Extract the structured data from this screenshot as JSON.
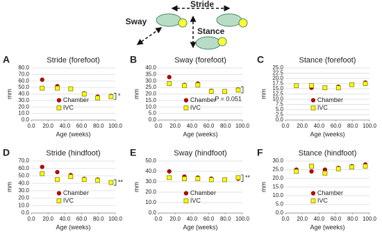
{
  "diagram": {
    "stride_label": "Stride",
    "sway_label": "Sway",
    "stance_label": "Stance"
  },
  "chart_data": [
    {
      "type": "scatter",
      "panel": "A",
      "title": "Stride (forefoot)",
      "x_label": "Age (weeks)",
      "y_label": "mm",
      "x": [
        13,
        31,
        47,
        63,
        79,
        95
      ],
      "series": [
        {
          "name": "Chamber",
          "color": "#c00000",
          "values": [
            62,
            52,
            48,
            41,
            36,
            37
          ]
        },
        {
          "name": "IVC",
          "color": "#ffff00",
          "values": [
            49,
            49,
            48,
            40,
            34,
            36
          ]
        }
      ],
      "xlim": [
        0,
        100
      ],
      "xticks": [
        {
          "value": 0,
          "label": "0.0"
        },
        {
          "value": 20,
          "label": "20.0"
        },
        {
          "value": 40,
          "label": "40.0"
        },
        {
          "value": 60,
          "label": "60.0"
        },
        {
          "value": 80,
          "label": "80.0"
        },
        {
          "value": 100,
          "label": "100.0"
        }
      ],
      "ylim": [
        0,
        80
      ],
      "yticks": [
        {
          "value": 0,
          "label": "0.0"
        },
        {
          "value": 10,
          "label": "10.0"
        },
        {
          "value": 20,
          "label": "20.0"
        },
        {
          "value": 30,
          "label": "30.0"
        },
        {
          "value": 40,
          "label": "40.0"
        },
        {
          "value": 50,
          "label": "50.0"
        },
        {
          "value": 60,
          "label": "60.0"
        },
        {
          "value": 70,
          "label": "70.0"
        },
        {
          "value": 80,
          "label": "80.0"
        }
      ],
      "grid": true,
      "annotation": "*"
    },
    {
      "type": "scatter",
      "panel": "B",
      "title": "Sway (forefoot)",
      "x_label": "Age (weeks)",
      "y_label": "mm",
      "x": [
        13,
        31,
        47,
        63,
        79,
        95
      ],
      "series": [
        {
          "name": "Chamber",
          "color": "#c00000",
          "values": [
            33,
            27,
            28,
            22.5,
            22,
            23.5
          ]
        },
        {
          "name": "IVC",
          "color": "#ffff00",
          "values": [
            28,
            26.5,
            27,
            22,
            22,
            23
          ]
        }
      ],
      "xlim": [
        0,
        100
      ],
      "xticks": [
        {
          "value": 0,
          "label": "0.0"
        },
        {
          "value": 20,
          "label": "20.0"
        },
        {
          "value": 40,
          "label": "40.0"
        },
        {
          "value": 60,
          "label": "60.0"
        },
        {
          "value": 80,
          "label": "80.0"
        },
        {
          "value": 100,
          "label": "100.0"
        }
      ],
      "ylim": [
        0,
        40
      ],
      "yticks": [
        {
          "value": 0,
          "label": "0.0"
        },
        {
          "value": 5,
          "label": "5.0"
        },
        {
          "value": 10,
          "label": "10.0"
        },
        {
          "value": 15,
          "label": "15.0"
        },
        {
          "value": 20,
          "label": "20.0"
        },
        {
          "value": 25,
          "label": "25.0"
        },
        {
          "value": 30,
          "label": "30.0"
        },
        {
          "value": 35,
          "label": "35.0"
        },
        {
          "value": 40,
          "label": "40.0"
        }
      ],
      "grid": true,
      "annotation": "P = 0.051"
    },
    {
      "type": "scatter",
      "panel": "C",
      "title": "Stance (forefoot)",
      "x_label": "Age (weeks)",
      "y_label": "mm",
      "x": [
        13,
        31,
        47,
        63,
        79,
        95
      ],
      "series": [
        {
          "name": "Chamber",
          "color": "#c00000",
          "values": [
            16.5,
            15.5,
            15.5,
            16,
            17,
            18
          ]
        },
        {
          "name": "IVC",
          "color": "#ffff00",
          "values": [
            16.5,
            16.5,
            15.5,
            15.5,
            17,
            17.5
          ]
        }
      ],
      "xlim": [
        0,
        100
      ],
      "xticks": [
        {
          "value": 0,
          "label": "0.0"
        },
        {
          "value": 20,
          "label": "20.0"
        },
        {
          "value": 40,
          "label": "40.0"
        },
        {
          "value": 60,
          "label": "60.0"
        },
        {
          "value": 80,
          "label": "80.0"
        },
        {
          "value": 100,
          "label": "100.0"
        }
      ],
      "ylim": [
        0,
        25
      ],
      "yticks": [
        {
          "value": 0,
          "label": "0.0"
        },
        {
          "value": 2.5,
          "label": "2.5"
        },
        {
          "value": 5,
          "label": "5.0"
        },
        {
          "value": 7.5,
          "label": "7.5"
        },
        {
          "value": 10,
          "label": "10.0"
        },
        {
          "value": 12.5,
          "label": "12.5"
        },
        {
          "value": 15,
          "label": "15.0"
        },
        {
          "value": 17.5,
          "label": "17.5"
        },
        {
          "value": 20,
          "label": "20.0"
        },
        {
          "value": 22.5,
          "label": "22.5"
        },
        {
          "value": 25,
          "label": "25.0"
        }
      ],
      "grid": true
    },
    {
      "type": "scatter",
      "panel": "D",
      "title": "Stride (hindfoot)",
      "x_label": "Age (weeks)",
      "y_label": "mm",
      "x": [
        13,
        31,
        47,
        63,
        79,
        95
      ],
      "series": [
        {
          "name": "Chamber",
          "color": "#c00000",
          "values": [
            62,
            55,
            51,
            46,
            45,
            41
          ]
        },
        {
          "name": "IVC",
          "color": "#ffff00",
          "values": [
            53,
            45,
            49,
            45,
            44,
            41
          ]
        }
      ],
      "xlim": [
        0,
        100
      ],
      "xticks": [
        {
          "value": 0,
          "label": "0.0"
        },
        {
          "value": 20,
          "label": "20.0"
        },
        {
          "value": 40,
          "label": "40.0"
        },
        {
          "value": 60,
          "label": "60.0"
        },
        {
          "value": 80,
          "label": "80.0"
        },
        {
          "value": 100,
          "label": "100.0"
        }
      ],
      "ylim": [
        0,
        70
      ],
      "yticks": [
        {
          "value": 0,
          "label": "0.0"
        },
        {
          "value": 10,
          "label": "10.0"
        },
        {
          "value": 20,
          "label": "20.0"
        },
        {
          "value": 30,
          "label": "30.0"
        },
        {
          "value": 40,
          "label": "40.0"
        },
        {
          "value": 50,
          "label": "50.0"
        },
        {
          "value": 60,
          "label": "60.0"
        },
        {
          "value": 70,
          "label": "70.0"
        }
      ],
      "grid": true,
      "annotation": "**"
    },
    {
      "type": "scatter",
      "panel": "E",
      "title": "Sway (hindfoot)",
      "x_label": "Age (weeks)",
      "y_label": "mm",
      "x": [
        13,
        31,
        47,
        63,
        79,
        95
      ],
      "series": [
        {
          "name": "Chamber",
          "color": "#c00000",
          "values": [
            40,
            35,
            34,
            33,
            32,
            33
          ]
        },
        {
          "name": "IVC",
          "color": "#ffff00",
          "values": [
            34,
            33,
            33,
            32,
            32,
            34
          ]
        }
      ],
      "xlim": [
        0,
        100
      ],
      "xticks": [
        {
          "value": 0,
          "label": "0.0"
        },
        {
          "value": 20,
          "label": "20.0"
        },
        {
          "value": 40,
          "label": "40.0"
        },
        {
          "value": 60,
          "label": "60.0"
        },
        {
          "value": 80,
          "label": "80.0"
        },
        {
          "value": 100,
          "label": "100.0"
        }
      ],
      "ylim": [
        0,
        50
      ],
      "yticks": [
        {
          "value": 0,
          "label": "0.0"
        },
        {
          "value": 10,
          "label": "10.0"
        },
        {
          "value": 20,
          "label": "20.0"
        },
        {
          "value": 30,
          "label": "30.0"
        },
        {
          "value": 40,
          "label": "40.0"
        },
        {
          "value": 50,
          "label": "50.0"
        }
      ],
      "grid": true,
      "annotation": "**"
    },
    {
      "type": "scatter",
      "panel": "F",
      "title": "Stance (hindfoot)",
      "x_label": "Age (weeks)",
      "y_label": "mm",
      "x": [
        13,
        31,
        47,
        63,
        79,
        95
      ],
      "series": [
        {
          "name": "Chamber",
          "color": "#c00000",
          "values": [
            25,
            24,
            25,
            26,
            27,
            28
          ]
        },
        {
          "name": "IVC",
          "color": "#ffff00",
          "values": [
            24,
            27,
            23,
            25.5,
            26.5,
            27
          ]
        }
      ],
      "xlim": [
        0,
        100
      ],
      "xticks": [
        {
          "value": 0,
          "label": "0.0"
        },
        {
          "value": 20,
          "label": "20.0"
        },
        {
          "value": 40,
          "label": "40.0"
        },
        {
          "value": 60,
          "label": "60.0"
        },
        {
          "value": 80,
          "label": "80.0"
        },
        {
          "value": 100,
          "label": "100.0"
        }
      ],
      "ylim": [
        0,
        30
      ],
      "yticks": [
        {
          "value": 0,
          "label": "0.0"
        },
        {
          "value": 5,
          "label": "5.0"
        },
        {
          "value": 10,
          "label": "10.0"
        },
        {
          "value": 15,
          "label": "15.0"
        },
        {
          "value": 20,
          "label": "20.0"
        },
        {
          "value": 25,
          "label": "25.0"
        },
        {
          "value": 30,
          "label": "30.0"
        }
      ],
      "grid": true
    }
  ]
}
